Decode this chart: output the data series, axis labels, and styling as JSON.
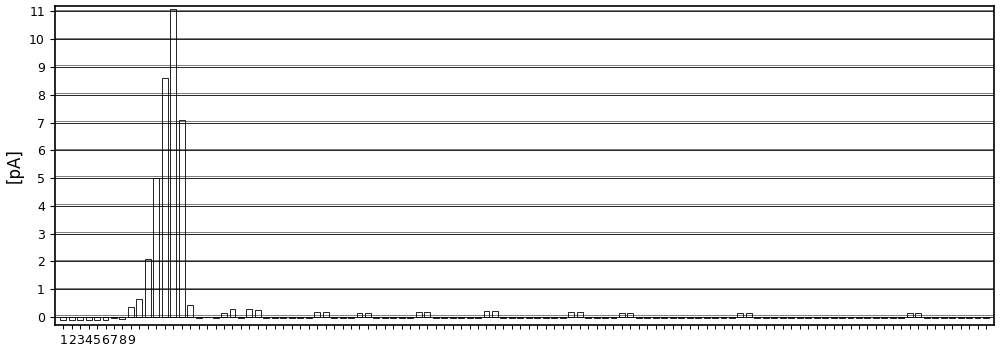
{
  "ylabel": "[pA]",
  "ylim": [
    -0.3,
    11.2
  ],
  "yticks": [
    0,
    1,
    2,
    3,
    4,
    5,
    6,
    7,
    8,
    9,
    10,
    11
  ],
  "background_color": "#ffffff",
  "bar_color": "#ffffff",
  "bar_edgecolor": "#000000",
  "values": [
    -0.12,
    -0.1,
    -0.12,
    -0.1,
    -0.1,
    -0.1,
    -0.05,
    -0.08,
    0.35,
    0.65,
    2.1,
    5.0,
    8.6,
    11.1,
    7.1,
    0.45,
    -0.05,
    0.0,
    -0.05,
    0.15,
    0.3,
    -0.05,
    0.3,
    0.25,
    -0.05,
    -0.05,
    -0.05,
    -0.05,
    -0.05,
    -0.05,
    0.2,
    0.2,
    -0.05,
    -0.05,
    -0.05,
    0.15,
    0.15,
    -0.05,
    -0.05,
    -0.05,
    -0.05,
    -0.05,
    0.18,
    0.18,
    -0.05,
    -0.05,
    -0.05,
    -0.05,
    -0.05,
    -0.05,
    0.22,
    0.22,
    -0.05,
    -0.05,
    -0.05,
    -0.05,
    -0.05,
    -0.05,
    -0.05,
    -0.05,
    0.18,
    0.18,
    -0.05,
    -0.05,
    -0.05,
    -0.05,
    0.15,
    0.15,
    -0.05,
    -0.05,
    -0.05,
    -0.05,
    -0.05,
    -0.05,
    -0.05,
    -0.05,
    -0.05,
    -0.05,
    -0.05,
    -0.05,
    0.15,
    0.15,
    -0.05,
    -0.05,
    -0.05,
    -0.05,
    -0.05,
    -0.05,
    -0.05,
    -0.05,
    -0.05,
    -0.05,
    -0.05,
    -0.05,
    -0.05,
    -0.05,
    -0.05,
    -0.05,
    -0.05,
    -0.05,
    0.15,
    0.15,
    -0.05,
    -0.05,
    -0.05,
    -0.05,
    -0.05,
    -0.05,
    -0.05,
    -0.05
  ],
  "x_labels_first9": [
    "1",
    "2",
    "3",
    "4",
    "5",
    "6",
    "7",
    "8",
    "9"
  ],
  "n_bars": 110,
  "figwidth": 10.0,
  "figheight": 3.53,
  "fontsize_ylabel": 12,
  "fontsize_tick": 9,
  "grid_linewidth": 0.6,
  "bar_linewidth": 0.6,
  "bar_width": 0.7
}
